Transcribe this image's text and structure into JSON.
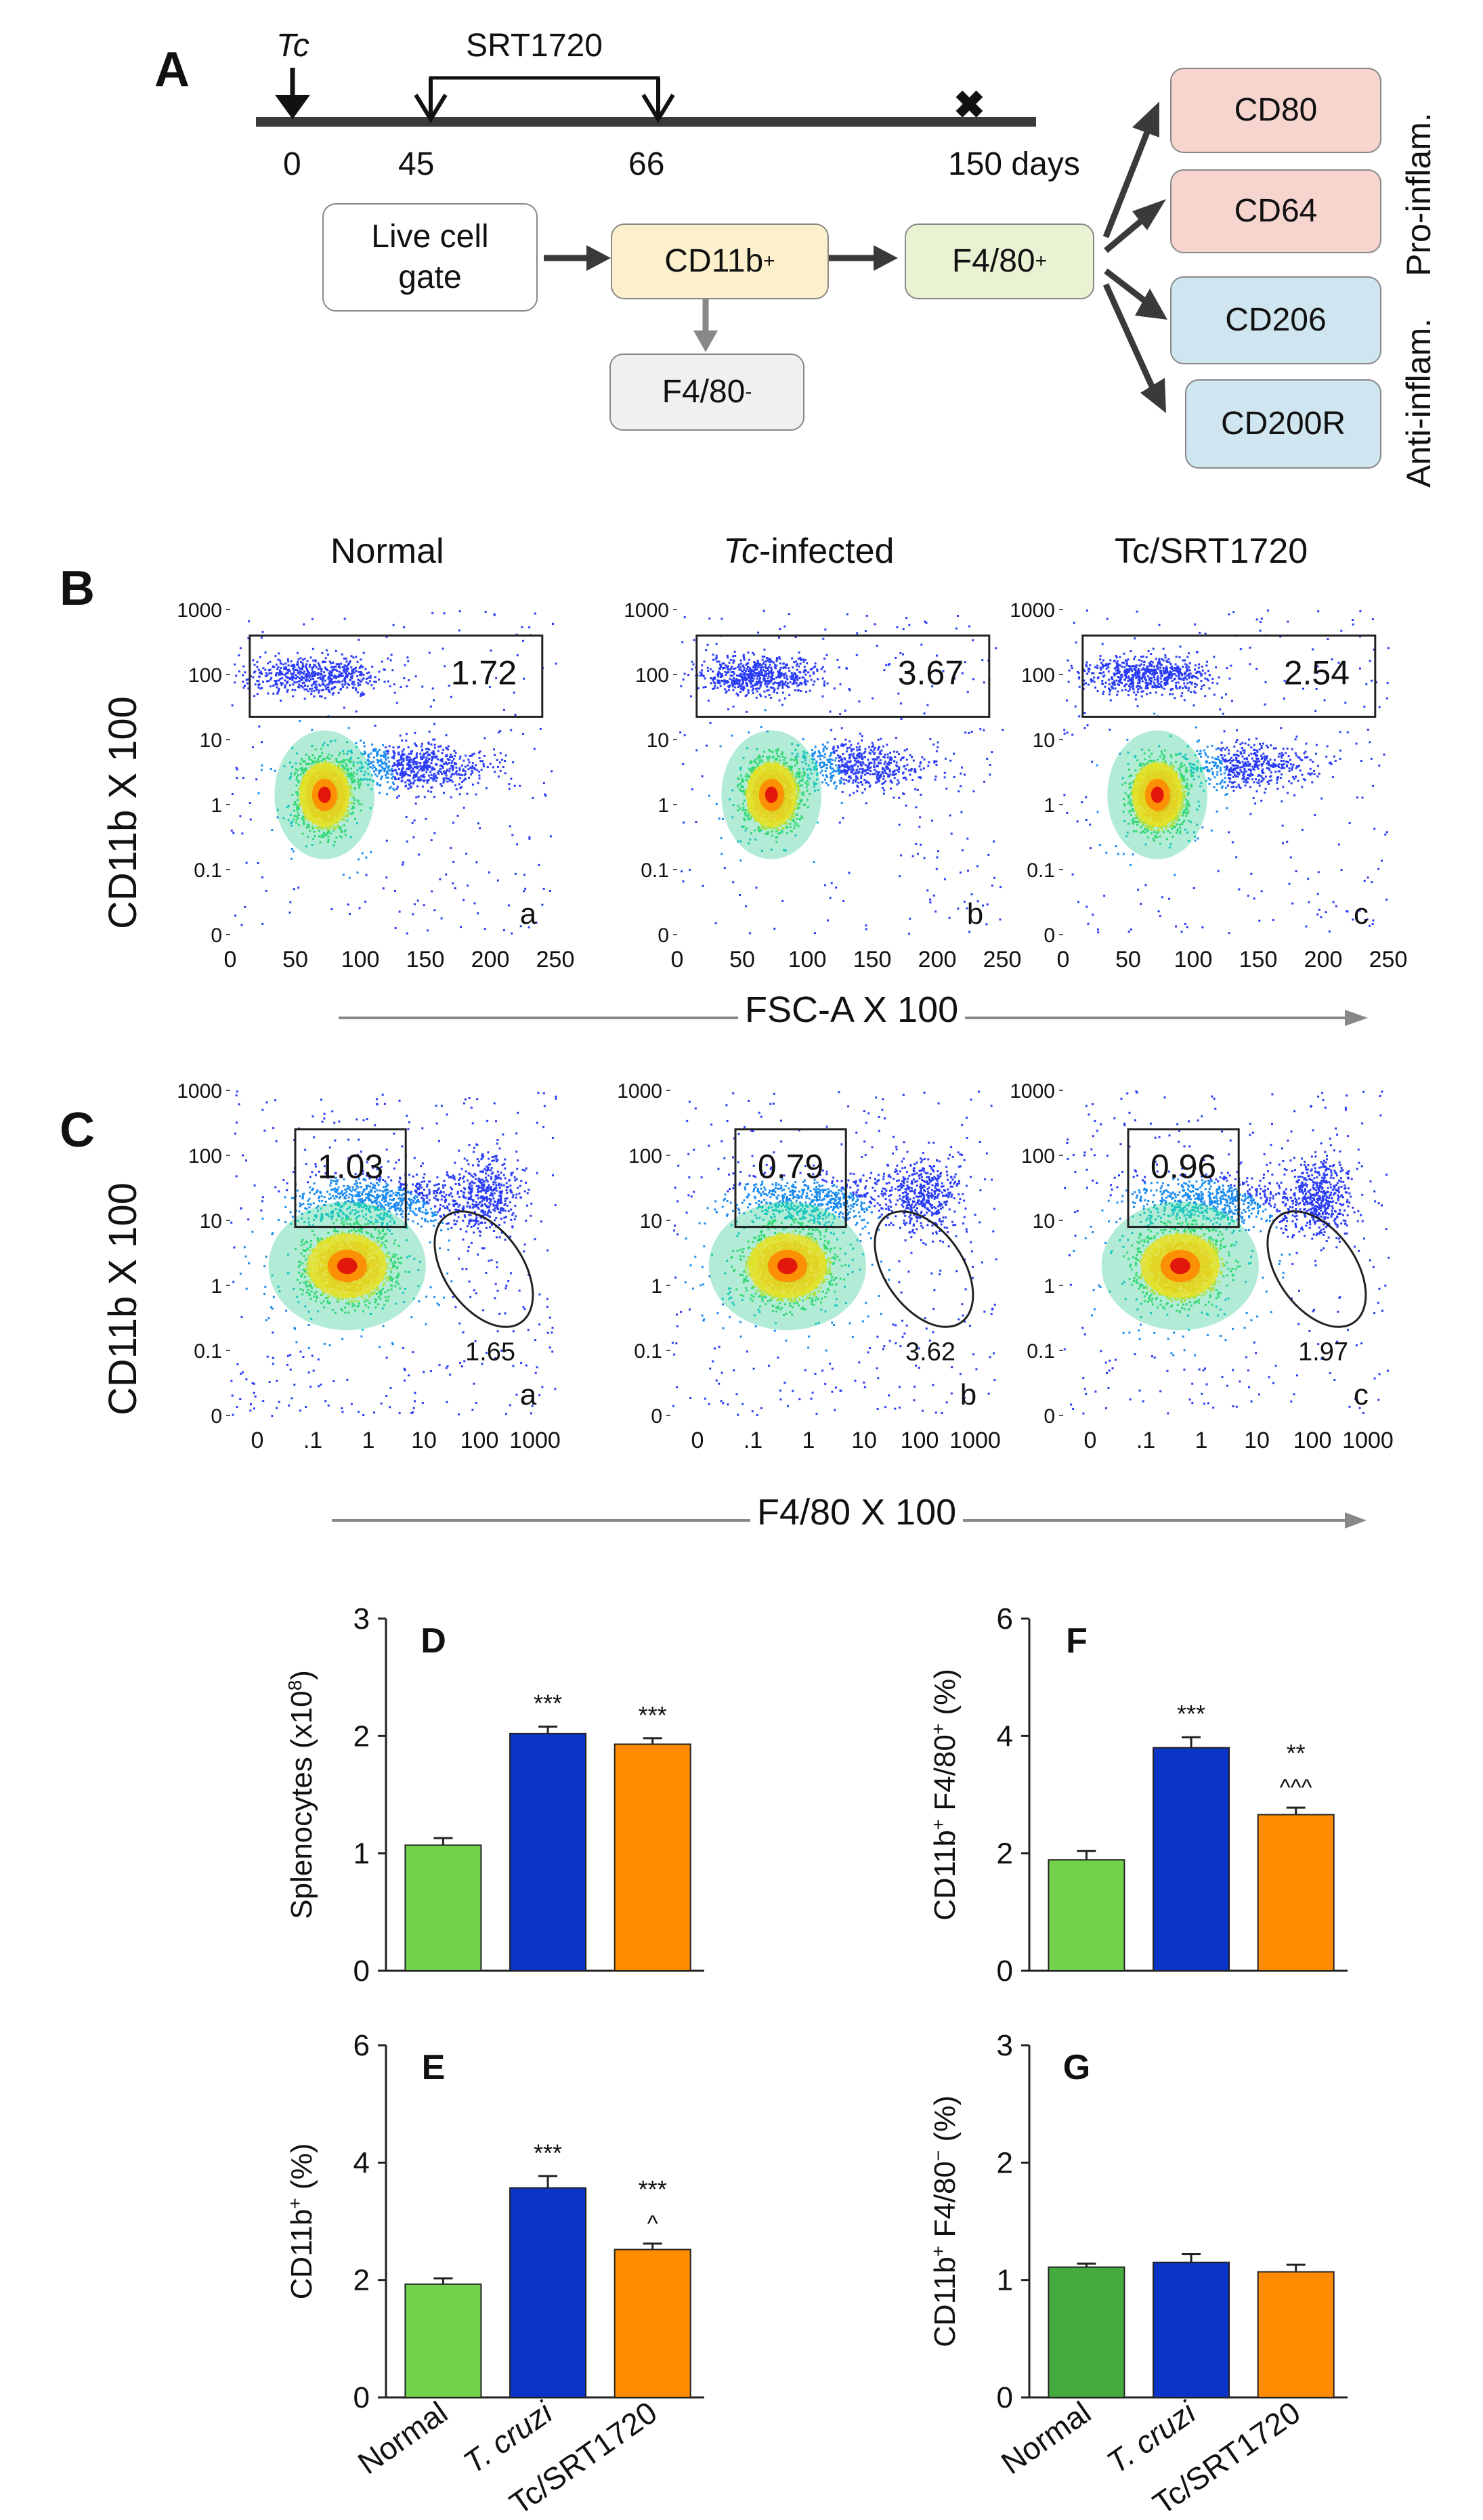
{
  "panelA": {
    "label": "A",
    "tc_label": "Tc",
    "drug_label": "SRT1720",
    "timeline": [
      "0",
      "45",
      "66",
      "150 days"
    ],
    "end_mark": "✖",
    "gating": {
      "live": "Live cell gate",
      "cd11b": "CD11b",
      "cd11b_sup": "+",
      "f480pos": "F4/80",
      "f480pos_sup": "+",
      "f480neg": "F4/80",
      "f480neg_sup": "-"
    },
    "markers": [
      "CD80",
      "CD64",
      "CD206",
      "CD200R"
    ],
    "pro_label": "Pro-inflam.",
    "anti_label": "Anti-inflam."
  },
  "panelB": {
    "label": "B",
    "titles": [
      "Normal",
      "Tc-infected",
      "Tc/SRT1720"
    ],
    "title_italic_part": "Tc",
    "gate_values": [
      "1.72",
      "3.67",
      "2.54"
    ],
    "sublabels": [
      "a",
      "b",
      "c"
    ],
    "y_ticks": [
      "1000",
      "100",
      "10",
      "1",
      "0.1",
      "0"
    ],
    "x_ticks": [
      "0",
      "50",
      "100",
      "150",
      "200",
      "250"
    ],
    "y_label": "CD11b X 100",
    "x_label": "FSC-A X 100"
  },
  "panelC": {
    "label": "C",
    "gate_values": [
      "1.03",
      "0.79",
      "0.96"
    ],
    "ellipse_values": [
      "1.65",
      "3.62",
      "1.97"
    ],
    "sublabels": [
      "a",
      "b",
      "c"
    ],
    "y_ticks": [
      "1000",
      "100",
      "10",
      "1",
      "0.1",
      "0"
    ],
    "x_ticks": [
      "0",
      ".1",
      "1",
      "10",
      "100",
      "1000"
    ],
    "y_label": "CD11b X 100",
    "x_label": "F4/80 X 100"
  },
  "colors": {
    "normal": "#72d24a",
    "normal_dark": "#44ab3e",
    "tcruzi": "#0b35c9",
    "tcsrt": "#ff8c00",
    "pro_box": "#f7d5cf",
    "anti_box": "#cfe5ef",
    "cd11b_box": "#fbf0cb",
    "f480_box": "#eaf2d4",
    "gray_box": "#f0f0f0"
  },
  "chart_data": [
    {
      "id": "D",
      "type": "bar",
      "title": "D",
      "ylabel": "Splenocytes (x10^8)",
      "ylim": [
        0,
        3
      ],
      "y_ticks": [
        "0",
        "1",
        "2",
        "3"
      ],
      "categories": [
        "Normal",
        "T. cruzi",
        "Tc/SRT1720"
      ],
      "values": [
        1.07,
        2.02,
        1.93
      ],
      "errors": [
        0.06,
        0.06,
        0.05
      ],
      "annotations": [
        "",
        "***",
        "***"
      ],
      "annotations2": [
        "",
        "",
        ""
      ]
    },
    {
      "id": "E",
      "type": "bar",
      "title": "E",
      "ylabel": "CD11b+ (%)",
      "ylim": [
        0,
        6
      ],
      "y_ticks": [
        "0",
        "2",
        "4",
        "6"
      ],
      "categories": [
        "Normal",
        "T. cruzi",
        "Tc/SRT1720"
      ],
      "values": [
        1.93,
        3.57,
        2.52
      ],
      "errors": [
        0.1,
        0.2,
        0.1
      ],
      "annotations": [
        "",
        "***",
        "***"
      ],
      "annotations2": [
        "",
        "",
        "^"
      ]
    },
    {
      "id": "F",
      "type": "bar",
      "title": "F",
      "ylabel": "CD11b+ F4/80+ (%)",
      "ylim": [
        0,
        6
      ],
      "y_ticks": [
        "0",
        "2",
        "4",
        "6"
      ],
      "categories": [
        "Normal",
        "T. cruzi",
        "Tc/SRT1720"
      ],
      "values": [
        1.89,
        3.8,
        2.66
      ],
      "errors": [
        0.15,
        0.18,
        0.12
      ],
      "annotations": [
        "",
        "***",
        "**"
      ],
      "annotations2": [
        "",
        "",
        "^^^"
      ]
    },
    {
      "id": "G",
      "type": "bar",
      "title": "G",
      "ylabel": "CD11b+ F4/80− (%)",
      "ylim": [
        0,
        3
      ],
      "y_ticks": [
        "0",
        "1",
        "2",
        "3"
      ],
      "categories": [
        "Normal",
        "T. cruzi",
        "Tc/SRT1720"
      ],
      "values": [
        1.11,
        1.15,
        1.07
      ],
      "errors": [
        0.03,
        0.07,
        0.06
      ],
      "annotations": [
        "",
        "",
        ""
      ],
      "annotations2": [
        "",
        "",
        ""
      ]
    }
  ]
}
